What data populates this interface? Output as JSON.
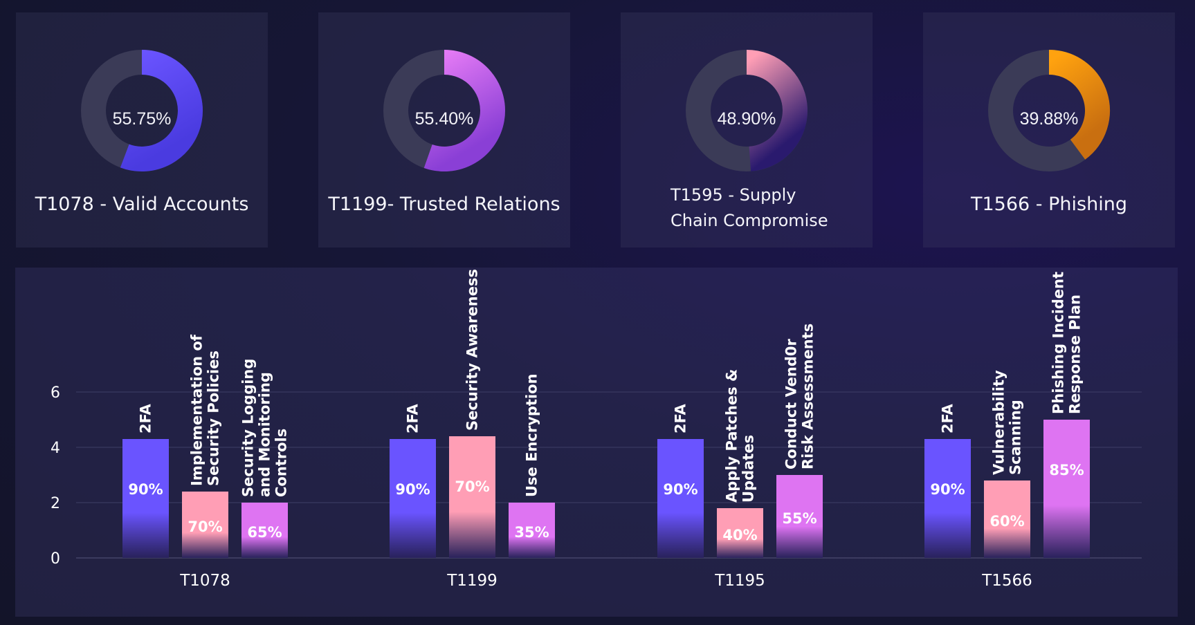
{
  "colors": {
    "indigo": "#6a54ff",
    "magenta": "#de74f2",
    "pink": "#ff9eb5",
    "orange": "#ffa20f",
    "track": "#3b3b57"
  },
  "cards": [
    {
      "value": "55.75%",
      "label": "T1078 - Valid Accounts",
      "percent": 55.75,
      "color": "#6a54ff",
      "color_end": "#4a3be0"
    },
    {
      "value": "55.40%",
      "label": "T1199- Trusted Relations",
      "percent": 55.4,
      "color": "#e57bf5",
      "color_end": "#8a3fd6"
    },
    {
      "value": "48.90%",
      "label": "T1595 - Supply\nChain Compromise",
      "percent": 48.9,
      "color": "#ff9eb5",
      "color_end": "#2a1a6e"
    },
    {
      "value": "39.88%",
      "label": "T1566 - Phishing",
      "percent": 39.88,
      "color": "#ffa20f",
      "color_end": "#c96f10"
    }
  ],
  "chart_data": {
    "type": "bar",
    "categories": [
      "T1078",
      "T1199",
      "T1195",
      "T1566"
    ],
    "ylim": [
      0,
      6
    ],
    "yticks": [
      0,
      2,
      4,
      6
    ],
    "grid": true,
    "groups": [
      {
        "category": "T1078",
        "bars": [
          {
            "name": "2FA",
            "value": 4.3,
            "label": "90%",
            "color": "#6a54ff"
          },
          {
            "name": "Implementation of\nSecurity Policies",
            "value": 2.4,
            "label": "70%",
            "color": "#ff9eb5"
          },
          {
            "name": "Security Logging\nand Monitoring\nControls",
            "value": 2.0,
            "label": "65%",
            "color": "#de74f2"
          }
        ]
      },
      {
        "category": "T1199",
        "bars": [
          {
            "name": "2FA",
            "value": 4.3,
            "label": "90%",
            "color": "#6a54ff"
          },
          {
            "name": "Security Awareness",
            "value": 4.4,
            "label": "70%",
            "color": "#ff9eb5"
          },
          {
            "name": "Use Encryption",
            "value": 2.0,
            "label": "35%",
            "color": "#de74f2"
          }
        ]
      },
      {
        "category": "T1195",
        "bars": [
          {
            "name": "2FA",
            "value": 4.3,
            "label": "90%",
            "color": "#6a54ff"
          },
          {
            "name": "Apply Patches &\nUpdates",
            "value": 1.8,
            "label": "40%",
            "color": "#ff9eb5"
          },
          {
            "name": "Conduct Vend0r\nRisk Assessments",
            "value": 3.0,
            "label": "55%",
            "color": "#de74f2"
          }
        ]
      },
      {
        "category": "T1566",
        "bars": [
          {
            "name": "2FA",
            "value": 4.3,
            "label": "90%",
            "color": "#6a54ff"
          },
          {
            "name": "Vulnerability\nScanning",
            "value": 2.8,
            "label": "60%",
            "color": "#ff9eb5"
          },
          {
            "name": "Phishing Incident\nResponse Plan",
            "value": 5.0,
            "label": "85%",
            "color": "#de74f2"
          }
        ]
      }
    ]
  }
}
